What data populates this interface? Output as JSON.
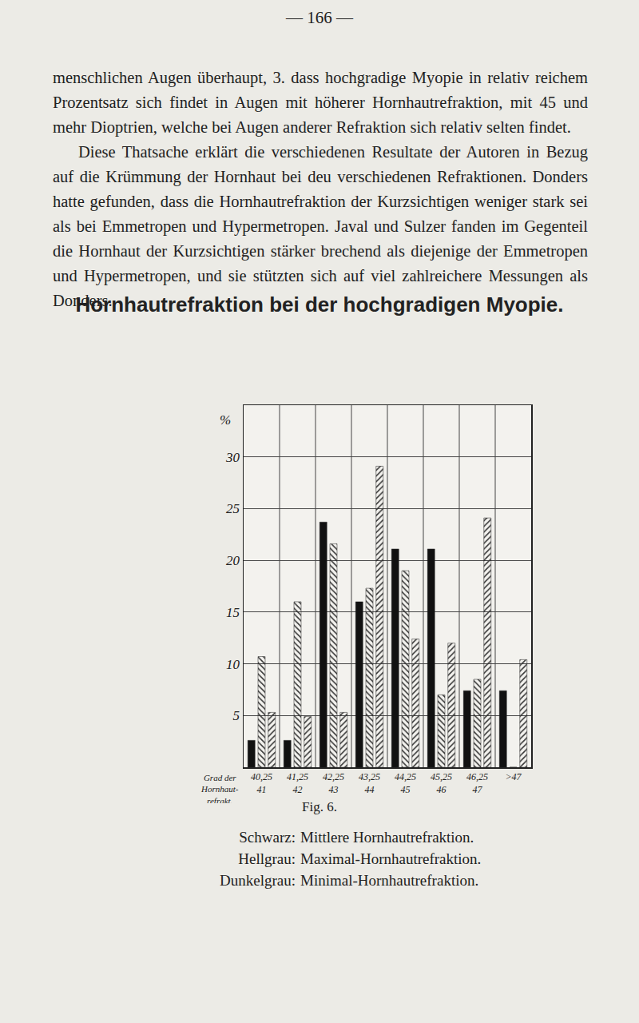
{
  "page": {
    "page_number": "— 166 —",
    "paragraphs": [
      "menschlichen Augen überhaupt, 3. dass hochgradige Myopie in relativ reichem Prozentsatz sich findet in Augen mit höherer Hornhautrefraktion, mit 45 und mehr Dioptrien, welche bei Augen anderer Refraktion sich relativ selten findet.",
      "Diese Thatsache erklärt die verschiedenen Resultate der Autoren in Bezug auf die Krümmung der Hornhaut bei deu verschiedenen Refraktionen. Donders hatte gefunden, dass die Hornhautrefraktion der Kurzsichtigen weniger stark sei als bei Emmetropen und Hypermetropen. Javal und Sulzer fanden im Gegenteil die Hornhaut der Kurzsichtigen stärker brechend als diejenige der Emmetropen und Hypermetropen, und sie stützten sich auf viel zahlreichere Messungen als Donders."
    ],
    "caption": "Fig. 6.",
    "legend_keys": [
      "Schwarz:",
      "Hellgrau:",
      "Dunkelgrau:"
    ]
  },
  "chart_data": {
    "type": "bar",
    "title": "Hornhautrefraktion bei der hochgradigen Myopie.",
    "xlabel": "Grad der\nHornhaut-\nrefrakt.",
    "ylabel": "%",
    "categories": [
      "40,25\n41",
      "41,25\n42",
      "42,25\n43",
      "43,25\n44",
      "44,25\n45",
      "45,25\n46",
      "46,25\n47",
      ">47"
    ],
    "series": [
      {
        "name": "Mittlere Hornhautrefraktion.",
        "color": "#111111",
        "values": [
          2.6,
          2.6,
          23.7,
          16.0,
          21.1,
          21.1,
          7.4,
          7.4
        ]
      },
      {
        "name": "Maximal-Hornhautrefraktion.",
        "color": "#b4b4b4",
        "values": [
          10.7,
          16.0,
          21.6,
          17.3,
          19.0,
          7.0,
          8.5,
          0
        ]
      },
      {
        "name": "Minimal-Hornhautrefraktion.",
        "color": "#606060",
        "values": [
          5.3,
          4.9,
          5.3,
          29.1,
          12.4,
          12.0,
          24.1,
          10.4
        ]
      }
    ],
    "ylim": [
      0,
      35
    ],
    "yticks": [
      5,
      10,
      15,
      20,
      25,
      30
    ],
    "grid": true
  }
}
